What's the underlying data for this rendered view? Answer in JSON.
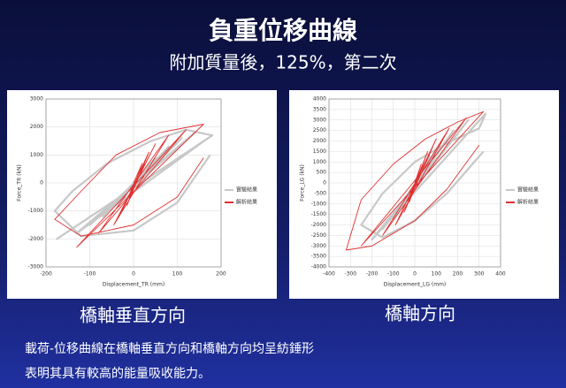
{
  "slide": {
    "title": "負重位移曲線",
    "subtitle": "附加質量後，125%，第二次",
    "captions": [
      "橋軸垂直方向",
      "橋軸方向"
    ],
    "notes": [
      "載荷-位移曲線在橋軸垂直方向和橋軸方向均呈紡錘形",
      "表明其具有較高的能量吸收能力。"
    ]
  },
  "chart_data": [
    {
      "type": "line",
      "xlabel": "Displacement_TR (mm)",
      "ylabel": "Force_TR (kN)",
      "xlim": [
        -200,
        200
      ],
      "xticks": [
        -200,
        -100,
        0,
        100,
        200
      ],
      "ylim": [
        -3000,
        3000
      ],
      "yticks": [
        -3000,
        -2000,
        -1000,
        0,
        1000,
        2000,
        3000
      ],
      "grid": true,
      "series": [
        {
          "name": "實驗結果",
          "color": "#c8c8c8",
          "x": [
            0,
            30,
            -25,
            50,
            -45,
            80,
            -70,
            110,
            -100,
            140,
            -130,
            170,
            -175,
            180,
            120,
            40,
            -60,
            -140,
            -180,
            -120,
            0,
            100,
            175
          ],
          "values": [
            0,
            500,
            -500,
            900,
            -800,
            1300,
            -1200,
            1600,
            -1500,
            1800,
            -1800,
            1600,
            -2000,
            1700,
            1900,
            1500,
            700,
            -300,
            -1000,
            -1900,
            -1700,
            -700,
            1000
          ]
        },
        {
          "name": "解析結果",
          "color": "#e03030",
          "x": [
            0,
            20,
            -15,
            35,
            -30,
            50,
            -45,
            80,
            -80,
            120,
            -130,
            160,
            60,
            -40,
            -120,
            -180,
            -120,
            0,
            100,
            160
          ],
          "values": [
            0,
            700,
            -800,
            1100,
            -1100,
            1400,
            -1500,
            1700,
            -1800,
            1900,
            -2300,
            2100,
            1800,
            1000,
            -300,
            -1300,
            -1900,
            -1500,
            -500,
            900
          ]
        }
      ]
    },
    {
      "type": "line",
      "xlabel": "Displacement_LG (mm)",
      "ylabel": "Force_LG (kN)",
      "xlim": [
        -400,
        400
      ],
      "xticks": [
        -400,
        -300,
        -200,
        -100,
        0,
        100,
        200,
        300,
        400
      ],
      "ylim": [
        -4000,
        4000
      ],
      "yticks": [
        -4000,
        -3500,
        -3000,
        -2500,
        -2000,
        -1500,
        -1000,
        -500,
        0,
        500,
        1000,
        1500,
        2000,
        2500,
        3000,
        3500,
        4000
      ],
      "grid": true,
      "series": [
        {
          "name": "實驗結果",
          "color": "#c8c8c8",
          "x": [
            0,
            40,
            -30,
            70,
            -60,
            120,
            -100,
            180,
            -150,
            250,
            -200,
            330,
            300,
            150,
            0,
            -150,
            -250,
            -150,
            0,
            150,
            320
          ],
          "values": [
            0,
            800,
            -700,
            1300,
            -1200,
            1900,
            -1700,
            2500,
            -2200,
            3000,
            -2700,
            3300,
            2600,
            1900,
            1000,
            -500,
            -2000,
            -2600,
            -1800,
            -500,
            1500
          ]
        },
        {
          "name": "解析結果",
          "color": "#e03030",
          "x": [
            0,
            30,
            -25,
            60,
            -50,
            100,
            -90,
            160,
            -150,
            240,
            -250,
            320,
            200,
            50,
            -100,
            -250,
            -320,
            -200,
            0,
            150,
            300
          ],
          "values": [
            0,
            900,
            -900,
            1500,
            -1400,
            2100,
            -2000,
            2600,
            -2500,
            3100,
            -3000,
            3400,
            2900,
            2100,
            900,
            -800,
            -3200,
            -3000,
            -1800,
            -300,
            1800
          ]
        }
      ]
    }
  ]
}
